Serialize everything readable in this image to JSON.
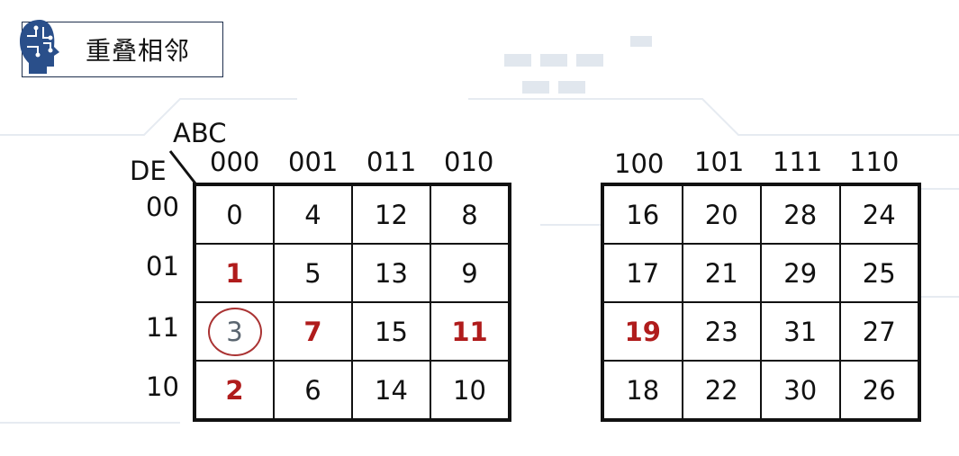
{
  "title": "重叠相邻",
  "icon": "circuit-brain-icon",
  "row_var_label": "DE",
  "col_var_label": "ABC",
  "left_map": {
    "col_labels": [
      "000",
      "001",
      "011",
      "010"
    ],
    "row_labels": [
      "00",
      "01",
      "11",
      "10"
    ],
    "cells": [
      [
        "0",
        "4",
        "12",
        "8"
      ],
      [
        "1",
        "5",
        "13",
        "9"
      ],
      [
        "3",
        "7",
        "15",
        "11"
      ],
      [
        "2",
        "6",
        "14",
        "10"
      ]
    ]
  },
  "right_map": {
    "col_labels": [
      "100",
      "101",
      "111",
      "110"
    ],
    "cells": [
      [
        "16",
        "20",
        "28",
        "24"
      ],
      [
        "17",
        "21",
        "29",
        "25"
      ],
      [
        "19",
        "23",
        "31",
        "27"
      ],
      [
        "18",
        "22",
        "30",
        "26"
      ]
    ]
  },
  "highlighted_cells": [
    "1",
    "2",
    "7",
    "11",
    "19"
  ],
  "circled_cells": [
    "3"
  ],
  "colors": {
    "highlight": "#b01c1c",
    "circle": "#aa3333",
    "grid": "#111111"
  }
}
